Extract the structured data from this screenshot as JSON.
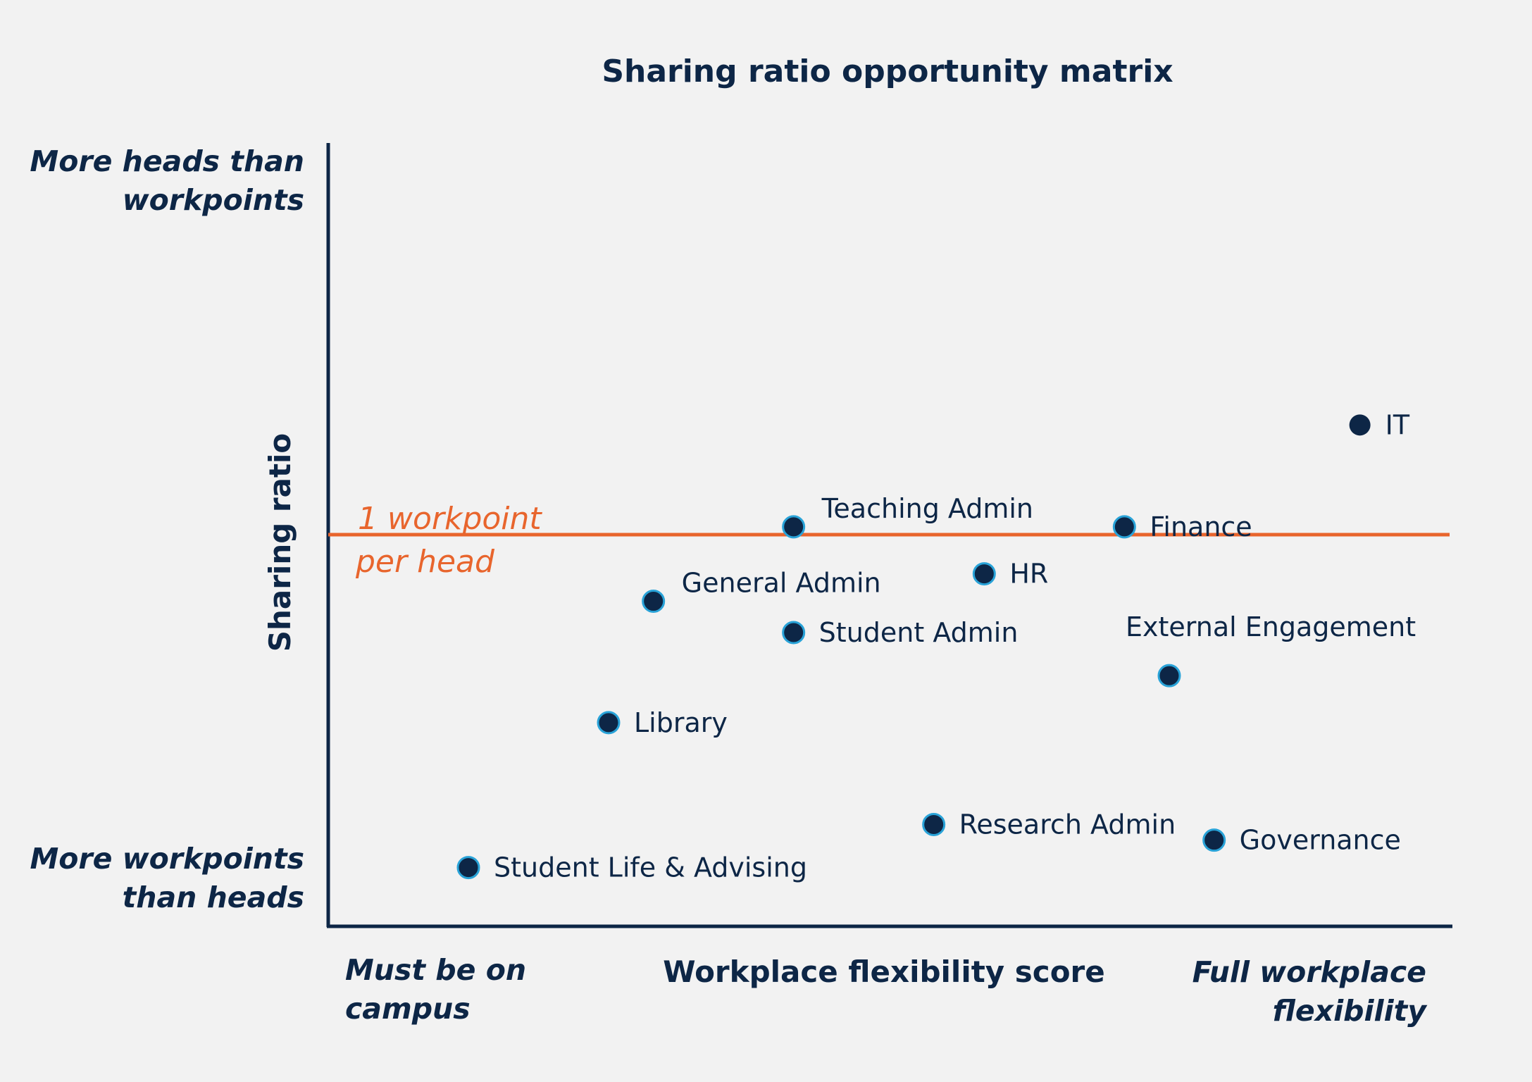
{
  "colors": {
    "background": "#f2f2f2",
    "text": "#0d2646",
    "axis": "#0d2646",
    "marker_fill": "#0d2646",
    "marker_stroke": "#29a3d8",
    "reference_line": "#e8652d"
  },
  "chart_data": {
    "type": "scatter",
    "title": "Sharing ratio opportunity matrix",
    "xlabel": "Workplace flexibility score",
    "ylabel": "Sharing ratio",
    "x_min_label": [
      "Must be on",
      "campus"
    ],
    "x_max_label": [
      "Full workplace",
      "flexibility"
    ],
    "y_max_label": [
      "More heads than",
      "workpoints"
    ],
    "y_min_label": [
      "More workpoints",
      "than heads"
    ],
    "xlim": [
      0,
      100
    ],
    "ylim": [
      0,
      100
    ],
    "grid": false,
    "reference_line": {
      "y": 50,
      "label": [
        "1 workpoint",
        "per head"
      ]
    },
    "points": [
      {
        "name": "IT",
        "x": 92,
        "y": 64,
        "label_pos": "right"
      },
      {
        "name": "Teaching Admin",
        "x": 41.5,
        "y": 51,
        "label_pos": "above-right"
      },
      {
        "name": "Finance",
        "x": 71,
        "y": 51,
        "label_pos": "right"
      },
      {
        "name": "HR",
        "x": 58.5,
        "y": 45,
        "label_pos": "right"
      },
      {
        "name": "General Admin",
        "x": 29,
        "y": 41.5,
        "label_pos": "above-right"
      },
      {
        "name": "Student Admin",
        "x": 41.5,
        "y": 37.5,
        "label_pos": "right"
      },
      {
        "name": "External Engagement",
        "x": 75,
        "y": 32,
        "label_pos": "above"
      },
      {
        "name": "Library",
        "x": 25,
        "y": 26,
        "label_pos": "right"
      },
      {
        "name": "Research Admin",
        "x": 54,
        "y": 13,
        "label_pos": "right"
      },
      {
        "name": "Governance",
        "x": 79,
        "y": 11,
        "label_pos": "right"
      },
      {
        "name": "Student Life & Advising",
        "x": 12.5,
        "y": 7.5,
        "label_pos": "right"
      }
    ]
  }
}
